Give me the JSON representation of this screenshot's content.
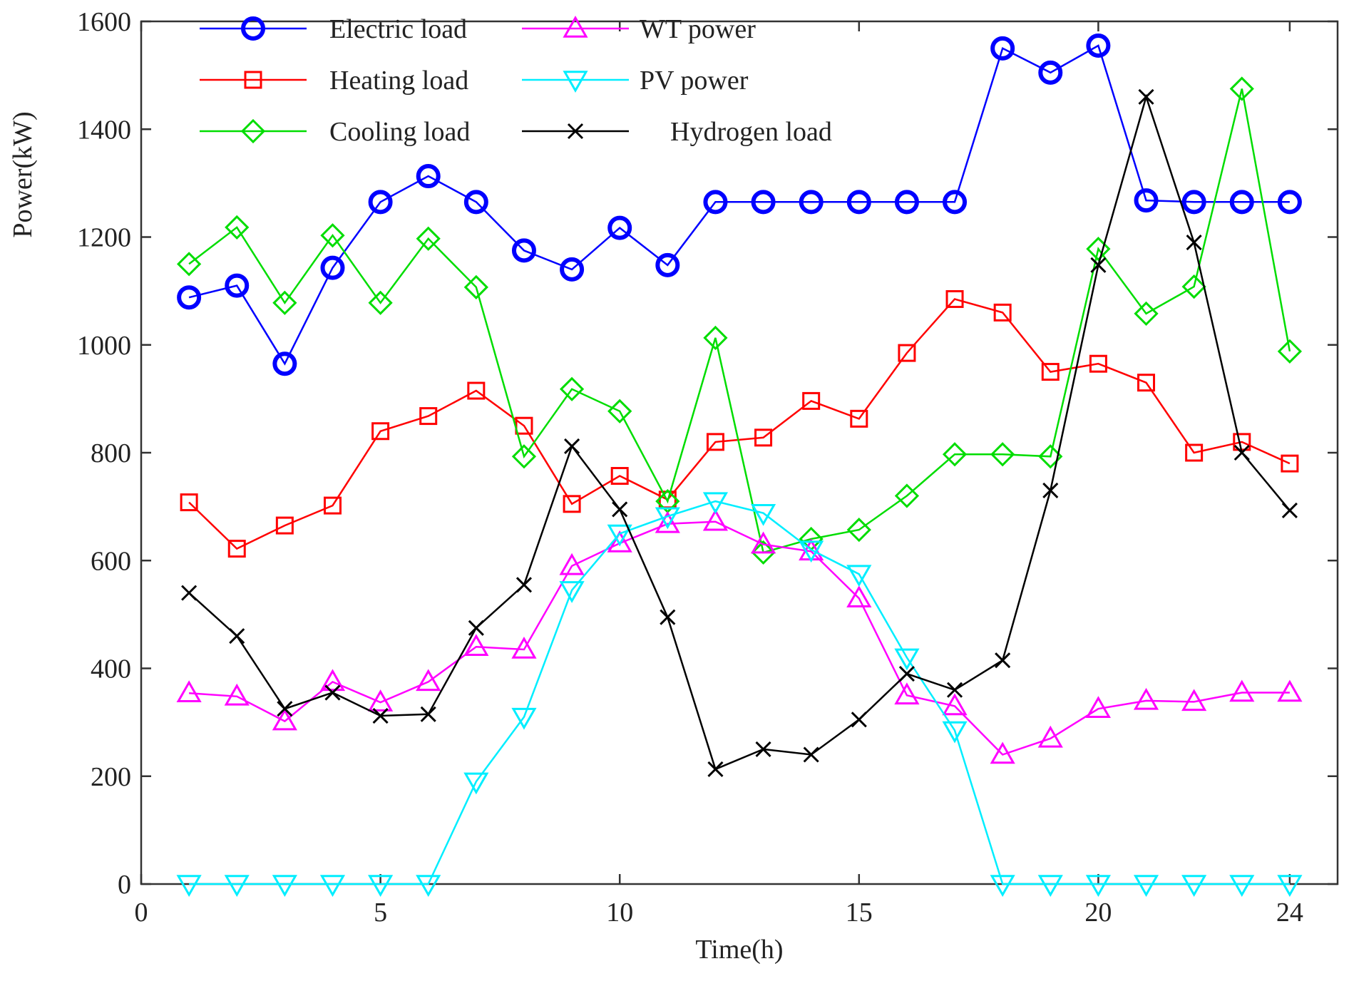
{
  "chart_data": {
    "type": "line",
    "title": "",
    "xlabel": "Time(h)",
    "ylabel": "Power(kW)",
    "xlim": [
      0,
      25
    ],
    "ylim": [
      0,
      1600
    ],
    "xticks": [
      0,
      5,
      10,
      15,
      20,
      24
    ],
    "yticks": [
      0,
      200,
      400,
      600,
      800,
      1000,
      1200,
      1400,
      1600
    ],
    "grid": false,
    "legend_position": "top-left",
    "x": [
      1,
      2,
      3,
      4,
      5,
      6,
      7,
      8,
      9,
      10,
      11,
      12,
      13,
      14,
      15,
      16,
      17,
      18,
      19,
      20,
      21,
      22,
      23,
      24
    ],
    "series": [
      {
        "name": "Electric load",
        "color": "#0000ff",
        "marker": "circle",
        "values": [
          1088,
          1110,
          965,
          1143,
          1265,
          1313,
          1265,
          1175,
          1140,
          1217,
          1148,
          1265,
          1265,
          1265,
          1265,
          1265,
          1265,
          1550,
          1505,
          1555,
          1268,
          1265,
          1265,
          1265
        ]
      },
      {
        "name": "Heating load",
        "color": "#ff0000",
        "marker": "square",
        "values": [
          708,
          622,
          665,
          702,
          840,
          868,
          915,
          850,
          705,
          757,
          713,
          820,
          828,
          896,
          863,
          985,
          1085,
          1060,
          950,
          965,
          930,
          800,
          820,
          780
        ]
      },
      {
        "name": "Cooling load",
        "color": "#00dd00",
        "marker": "diamond",
        "values": [
          1150,
          1218,
          1078,
          1203,
          1078,
          1197,
          1107,
          793,
          918,
          877,
          710,
          1013,
          615,
          640,
          657,
          720,
          797,
          797,
          793,
          1178,
          1058,
          1108,
          1475,
          988
        ]
      },
      {
        "name": "WT power",
        "color": "#ff00ff",
        "marker": "triangle-up",
        "values": [
          354,
          348,
          302,
          375,
          337,
          375,
          440,
          435,
          590,
          632,
          668,
          672,
          630,
          617,
          530,
          350,
          330,
          240,
          270,
          325,
          340,
          338,
          355,
          355
        ]
      },
      {
        "name": "PV power",
        "color": "#00eeff",
        "marker": "triangle-down",
        "values": [
          0,
          0,
          0,
          0,
          0,
          0,
          190,
          310,
          545,
          650,
          682,
          710,
          688,
          620,
          575,
          420,
          285,
          0,
          0,
          0,
          0,
          0,
          0,
          0
        ]
      },
      {
        "name": "Hydrogen load",
        "color": "#000000",
        "marker": "x",
        "values": [
          540,
          460,
          325,
          355,
          312,
          315,
          475,
          555,
          812,
          695,
          495,
          213,
          250,
          240,
          305,
          390,
          360,
          415,
          730,
          1148,
          1460,
          1190,
          800,
          693
        ]
      }
    ]
  }
}
